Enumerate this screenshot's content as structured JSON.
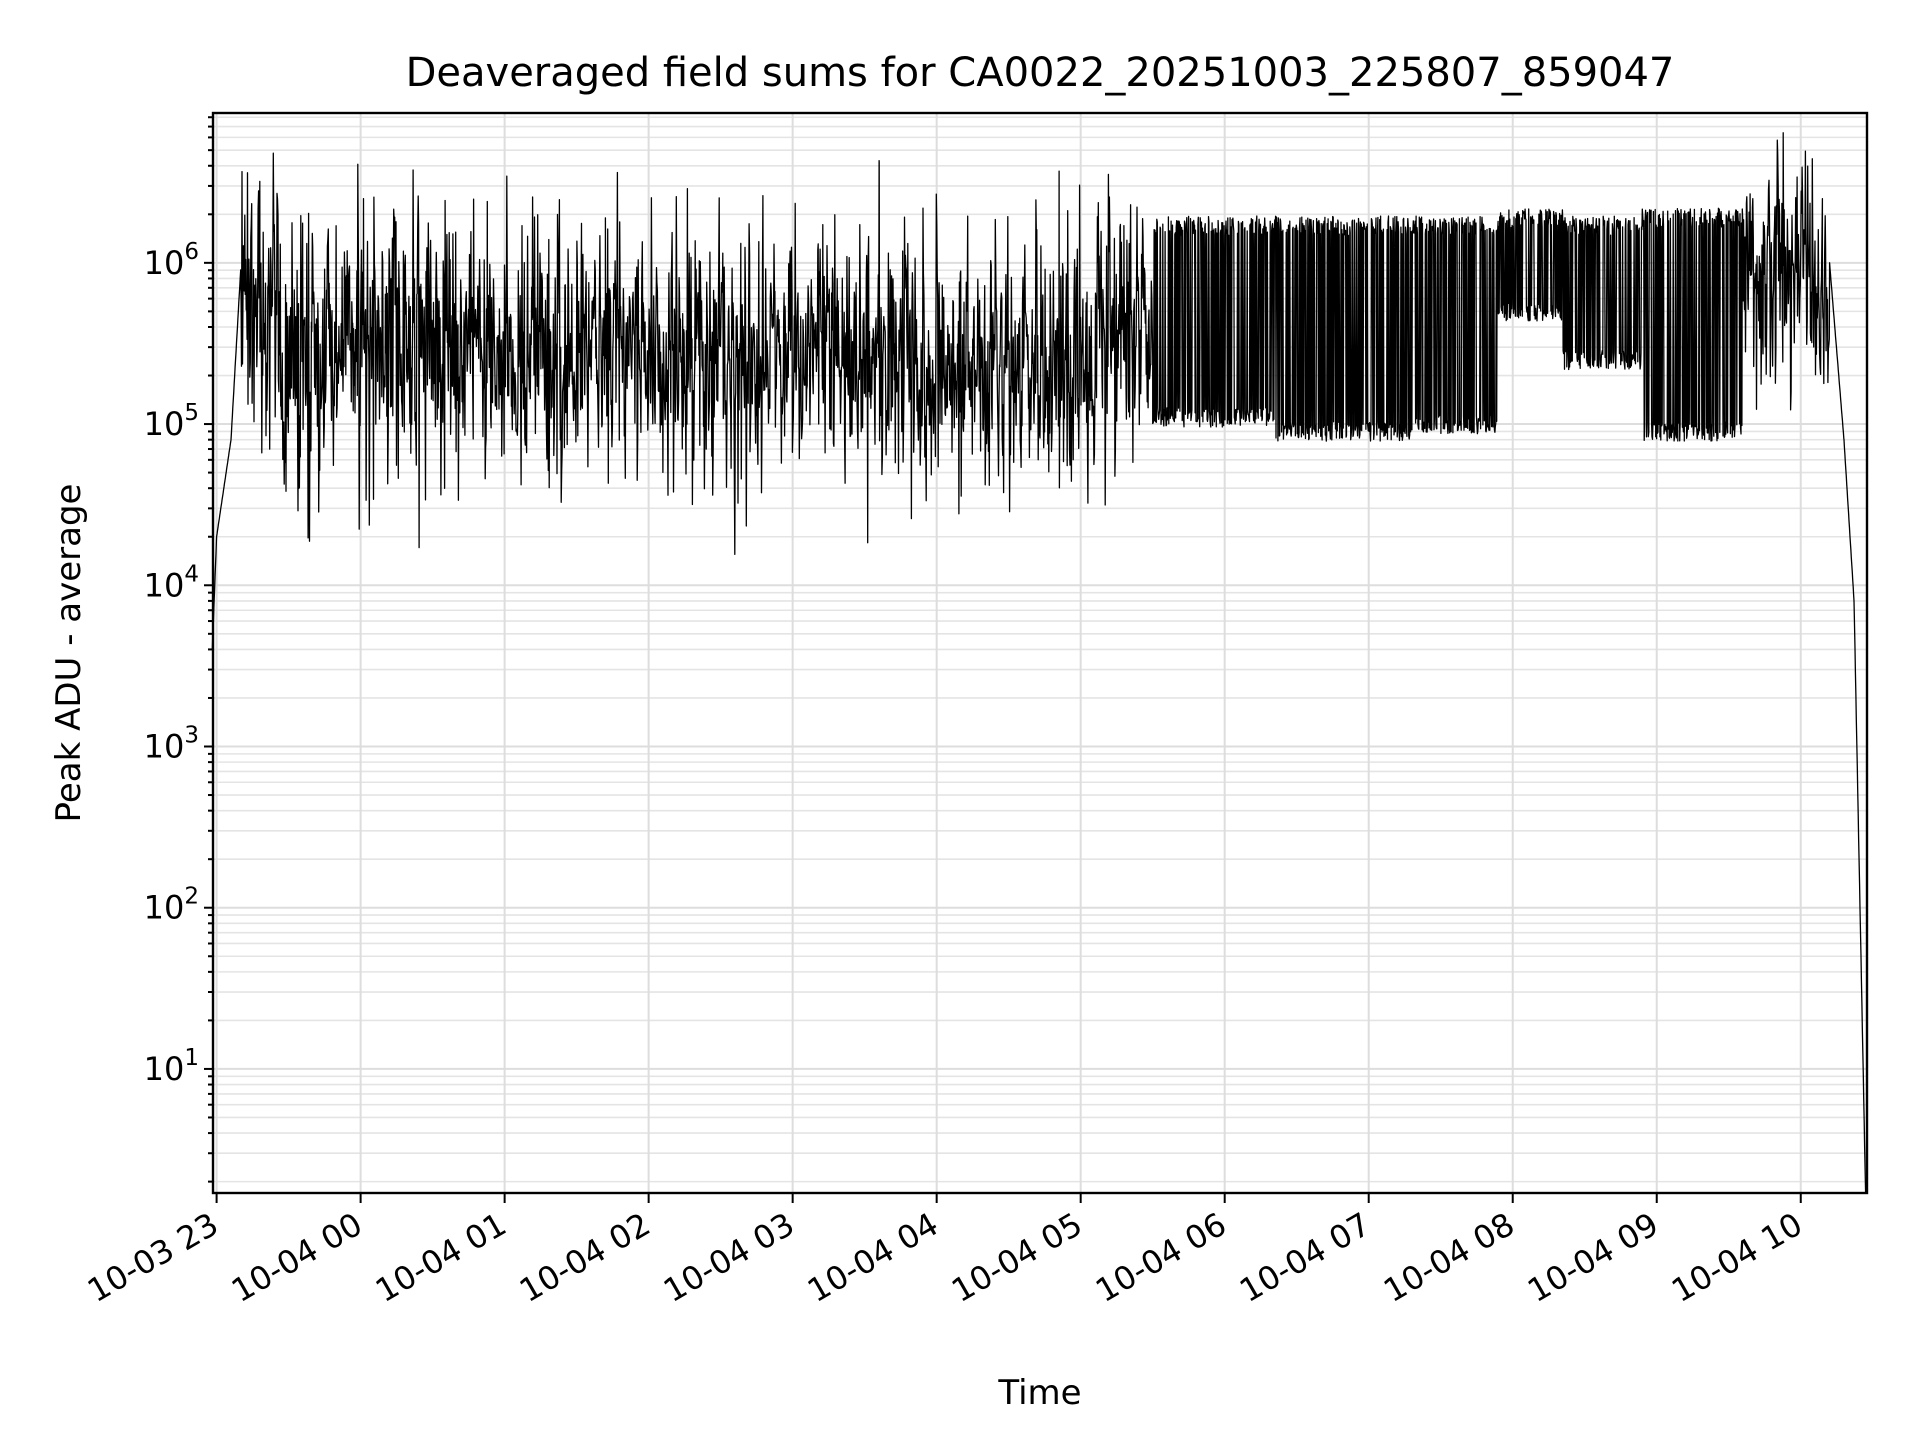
{
  "chart_data": {
    "type": "line",
    "title": "Deaveraged field sums for CA0022_20251003_225807_859047",
    "xlabel": "Time",
    "ylabel": "Peak ADU - average",
    "yscale": "log",
    "ylim": [
      1.7,
      8500000
    ],
    "xlim": [
      "2025-10-03 22:58",
      "2025-10-04 10:27"
    ],
    "grid": true,
    "line_color": "#000000",
    "grid_color": "#dddddd",
    "xticks": [
      {
        "label": "10-03 23",
        "hour": 23
      },
      {
        "label": "10-04 00",
        "hour": 24
      },
      {
        "label": "10-04 01",
        "hour": 25
      },
      {
        "label": "10-04 02",
        "hour": 26
      },
      {
        "label": "10-04 03",
        "hour": 27
      },
      {
        "label": "10-04 04",
        "hour": 28
      },
      {
        "label": "10-04 05",
        "hour": 29
      },
      {
        "label": "10-04 06",
        "hour": 30
      },
      {
        "label": "10-04 07",
        "hour": 31
      },
      {
        "label": "10-04 08",
        "hour": 32
      },
      {
        "label": "10-04 09",
        "hour": 33
      },
      {
        "label": "10-04 10",
        "hour": 34
      }
    ],
    "yticks": [
      {
        "base": "10",
        "exp": "1",
        "value": 10
      },
      {
        "base": "10",
        "exp": "2",
        "value": 100
      },
      {
        "base": "10",
        "exp": "3",
        "value": 1000
      },
      {
        "base": "10",
        "exp": "4",
        "value": 10000
      },
      {
        "base": "10",
        "exp": "5",
        "value": 100000
      },
      {
        "base": "10",
        "exp": "6",
        "value": 1000000
      }
    ],
    "series": [
      {
        "name": "field sums",
        "seed": 22,
        "segments": [
          {
            "t0": 22.97,
            "t1": 23.0,
            "mode": "ramp",
            "v0": 4000,
            "v1": 20000
          },
          {
            "t0": 23.0,
            "t1": 23.1,
            "mode": "ramp",
            "v0": 20000,
            "v1": 80000
          },
          {
            "t0": 23.1,
            "t1": 23.17,
            "mode": "ramp",
            "v0": 80000,
            "v1": 1000000
          },
          {
            "t0": 23.17,
            "t1": 23.45,
            "mode": "noise",
            "center": 700000,
            "spread": 0.35
          },
          {
            "t0": 23.45,
            "t1": 23.75,
            "mode": "noise",
            "center": 200000,
            "spread": 0.4
          },
          {
            "t0": 23.75,
            "t1": 24.5,
            "mode": "noise",
            "center": 350000,
            "spread": 0.4
          },
          {
            "t0": 24.5,
            "t1": 26.0,
            "mode": "noise",
            "center": 300000,
            "spread": 0.35
          },
          {
            "t0": 26.0,
            "t1": 27.3,
            "mode": "noise",
            "center": 280000,
            "spread": 0.38
          },
          {
            "t0": 27.3,
            "t1": 29.1,
            "mode": "noise",
            "center": 230000,
            "spread": 0.38
          },
          {
            "t0": 29.1,
            "t1": 29.5,
            "mode": "noise",
            "center": 400000,
            "spread": 0.35
          },
          {
            "t0": 29.5,
            "t1": 30.35,
            "mode": "switch",
            "low": 110000,
            "high": 1700000
          },
          {
            "t0": 30.35,
            "t1": 31.3,
            "mode": "switch",
            "low": 90000,
            "high": 1700000
          },
          {
            "t0": 31.3,
            "t1": 31.9,
            "mode": "switch",
            "low": 100000,
            "high": 1700000
          },
          {
            "t0": 31.9,
            "t1": 32.35,
            "mode": "switch",
            "low": 500000,
            "high": 1900000
          },
          {
            "t0": 32.35,
            "t1": 32.9,
            "mode": "switch",
            "low": 250000,
            "high": 1700000
          },
          {
            "t0": 32.9,
            "t1": 33.6,
            "mode": "switch",
            "low": 90000,
            "high": 1900000
          },
          {
            "t0": 33.6,
            "t1": 34.2,
            "mode": "noise",
            "center": 800000,
            "spread": 0.3
          },
          {
            "t0": 34.2,
            "t1": 34.3,
            "mode": "ramp",
            "v0": 1000000,
            "v1": 80000
          },
          {
            "t0": 34.3,
            "t1": 34.37,
            "mode": "ramp",
            "v0": 80000,
            "v1": 8000
          },
          {
            "t0": 34.37,
            "t1": 34.45,
            "mode": "ramp",
            "v0": 8000,
            "v1": 1.7
          }
        ],
        "spikes": [
          {
            "t": 23.3,
            "v": 3200000
          },
          {
            "t": 24.02,
            "v": 2500000
          },
          {
            "t": 24.88,
            "v": 2400000
          },
          {
            "t": 25.7,
            "v": 1900000
          },
          {
            "t": 25.72,
            "v": 43000
          },
          {
            "t": 27.6,
            "v": 4300000
          },
          {
            "t": 28.85,
            "v": 3700000
          },
          {
            "t": 29.3,
            "v": 1700000
          },
          {
            "t": 34.15,
            "v": 2500000
          }
        ]
      }
    ]
  }
}
